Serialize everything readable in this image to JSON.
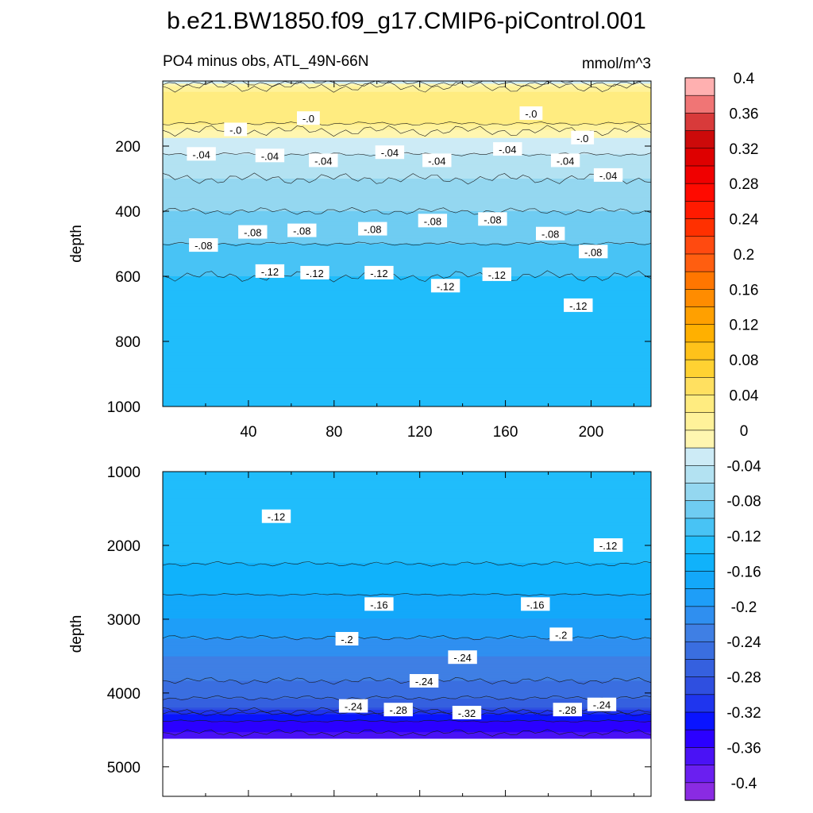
{
  "title": "b.e21.BW1850.f09_g17.CMIP6-piControl.001",
  "subtitle_left": "PO4 minus obs, ATL_49N-66N",
  "subtitle_right": "mmol/m^3",
  "chart_data": [
    {
      "type": "contour",
      "panel": "upper",
      "ylabel": "depth",
      "xlabel": "",
      "xlim": [
        0,
        228
      ],
      "ylim": [
        1000,
        0
      ],
      "x_ticks": [
        40,
        80,
        120,
        160,
        200
      ],
      "y_ticks": [
        200,
        400,
        600,
        800,
        1000
      ],
      "profile": [
        {
          "depth": 0,
          "value": -0.03
        },
        {
          "depth": 30,
          "value": 0.02
        },
        {
          "depth": 120,
          "value": 0.03
        },
        {
          "depth": 175,
          "value": -0.02
        },
        {
          "depth": 250,
          "value": -0.05
        },
        {
          "depth": 350,
          "value": -0.07
        },
        {
          "depth": 450,
          "value": -0.09
        },
        {
          "depth": 550,
          "value": -0.11
        },
        {
          "depth": 650,
          "value": -0.13
        },
        {
          "depth": 800,
          "value": -0.135
        },
        {
          "depth": 1000,
          "value": -0.135
        }
      ],
      "contour_labels": [
        {
          "text": "-.04",
          "x": 18,
          "depth": 225
        },
        {
          "text": "-.04",
          "x": 50,
          "depth": 230
        },
        {
          "text": "-.04",
          "x": 75,
          "depth": 245
        },
        {
          "text": "-.04",
          "x": 106,
          "depth": 220
        },
        {
          "text": "-.04",
          "x": 128,
          "depth": 245
        },
        {
          "text": "-.04",
          "x": 161,
          "depth": 210
        },
        {
          "text": "-.04",
          "x": 188,
          "depth": 245
        },
        {
          "text": "-.04",
          "x": 208,
          "depth": 290
        },
        {
          "text": "-.0",
          "x": 34,
          "depth": 150
        },
        {
          "text": "-.0",
          "x": 68,
          "depth": 115
        },
        {
          "text": "-.0",
          "x": 172,
          "depth": 100
        },
        {
          "text": "-.0",
          "x": 196,
          "depth": 175
        },
        {
          "text": "-.08",
          "x": 19,
          "depth": 505
        },
        {
          "text": "-.08",
          "x": 42,
          "depth": 465
        },
        {
          "text": "-.08",
          "x": 65,
          "depth": 460
        },
        {
          "text": "-.08",
          "x": 98,
          "depth": 455
        },
        {
          "text": "-.08",
          "x": 126,
          "depth": 430
        },
        {
          "text": "-.08",
          "x": 154,
          "depth": 425
        },
        {
          "text": "-.08",
          "x": 181,
          "depth": 470
        },
        {
          "text": "-.08",
          "x": 201,
          "depth": 525
        },
        {
          "text": "-.12",
          "x": 50,
          "depth": 585
        },
        {
          "text": "-.12",
          "x": 71,
          "depth": 590
        },
        {
          "text": "-.12",
          "x": 101,
          "depth": 590
        },
        {
          "text": "-.12",
          "x": 132,
          "depth": 630
        },
        {
          "text": "-.12",
          "x": 156,
          "depth": 595
        },
        {
          "text": "-.12",
          "x": 194,
          "depth": 690
        }
      ]
    },
    {
      "type": "contour",
      "panel": "lower",
      "ylabel": "depth",
      "xlabel": "",
      "xlim": [
        0,
        228
      ],
      "ylim": [
        5400,
        1000
      ],
      "y_ticks": [
        1000,
        2000,
        3000,
        4000,
        5000
      ],
      "missing_below_depth": 4620,
      "profile": [
        {
          "depth": 1000,
          "value": -0.135
        },
        {
          "depth": 1500,
          "value": -0.12
        },
        {
          "depth": 2000,
          "value": -0.13
        },
        {
          "depth": 2500,
          "value": -0.15
        },
        {
          "depth": 3000,
          "value": -0.18
        },
        {
          "depth": 3500,
          "value": -0.22
        },
        {
          "depth": 4000,
          "value": -0.25
        },
        {
          "depth": 4200,
          "value": -0.28
        },
        {
          "depth": 4300,
          "value": -0.33
        },
        {
          "depth": 4620,
          "value": -0.37
        }
      ],
      "contour_labels": [
        {
          "text": "-.12",
          "x": 53,
          "depth": 1610
        },
        {
          "text": "-.12",
          "x": 208,
          "depth": 2000
        },
        {
          "text": "-.16",
          "x": 101,
          "depth": 2800
        },
        {
          "text": "-.16",
          "x": 174,
          "depth": 2800
        },
        {
          "text": "-.2",
          "x": 86,
          "depth": 3270
        },
        {
          "text": "-.2",
          "x": 186,
          "depth": 3210
        },
        {
          "text": "-.24",
          "x": 140,
          "depth": 3520
        },
        {
          "text": "-.24",
          "x": 122,
          "depth": 3840
        },
        {
          "text": "-.24",
          "x": 89,
          "depth": 4180
        },
        {
          "text": "-.24",
          "x": 205,
          "depth": 4160
        },
        {
          "text": "-.28",
          "x": 110,
          "depth": 4230
        },
        {
          "text": "-.28",
          "x": 189,
          "depth": 4230
        },
        {
          "text": "-.32",
          "x": 142,
          "depth": 4270
        }
      ]
    }
  ],
  "colorbar": {
    "levels": [
      -0.4,
      -0.38,
      -0.36,
      -0.34,
      -0.32,
      -0.3,
      -0.28,
      -0.26,
      -0.24,
      -0.22,
      -0.2,
      -0.18,
      -0.16,
      -0.14,
      -0.12,
      -0.1,
      -0.08,
      -0.06,
      -0.04,
      -0.02,
      0,
      0.02,
      0.04,
      0.06,
      0.08,
      0.1,
      0.12,
      0.14,
      0.16,
      0.18,
      0.2,
      0.22,
      0.24,
      0.26,
      0.28,
      0.3,
      0.32,
      0.34,
      0.36,
      0.38,
      0.4
    ],
    "labels": [
      "-0.4",
      "-0.36",
      "-0.32",
      "-0.28",
      "-0.24",
      "-0.2",
      "-0.16",
      "-0.12",
      "-0.08",
      "-0.04",
      "0",
      "0.04",
      "0.08",
      "0.12",
      "0.16",
      "0.2",
      "0.24",
      "0.28",
      "0.32",
      "0.36",
      "0.4"
    ],
    "colors": [
      "#8a2be2",
      "#6a1ff0",
      "#4a12f5",
      "#2b00ff",
      "#0a14ff",
      "#1f35ee",
      "#2f4fe0",
      "#3560df",
      "#3a6ee0",
      "#3f7fe4",
      "#2f8ff0",
      "#1e9ef8",
      "#13a8fa",
      "#10b2fb",
      "#20bdfb",
      "#48c3f5",
      "#6fccf2",
      "#94d7f0",
      "#b3e2f2",
      "#cdebf6",
      "#fff6b0",
      "#fff29a",
      "#ffec80",
      "#ffe060",
      "#ffd232",
      "#ffc21a",
      "#ffb000",
      "#ffa000",
      "#ff8c00",
      "#ff7600",
      "#ff5e10",
      "#ff4a10",
      "#ff3000",
      "#ff1a00",
      "#ff0a00",
      "#f00000",
      "#de0000",
      "#cc0a0a",
      "#d83a3a",
      "#f07575",
      "#ffb0b0"
    ]
  }
}
